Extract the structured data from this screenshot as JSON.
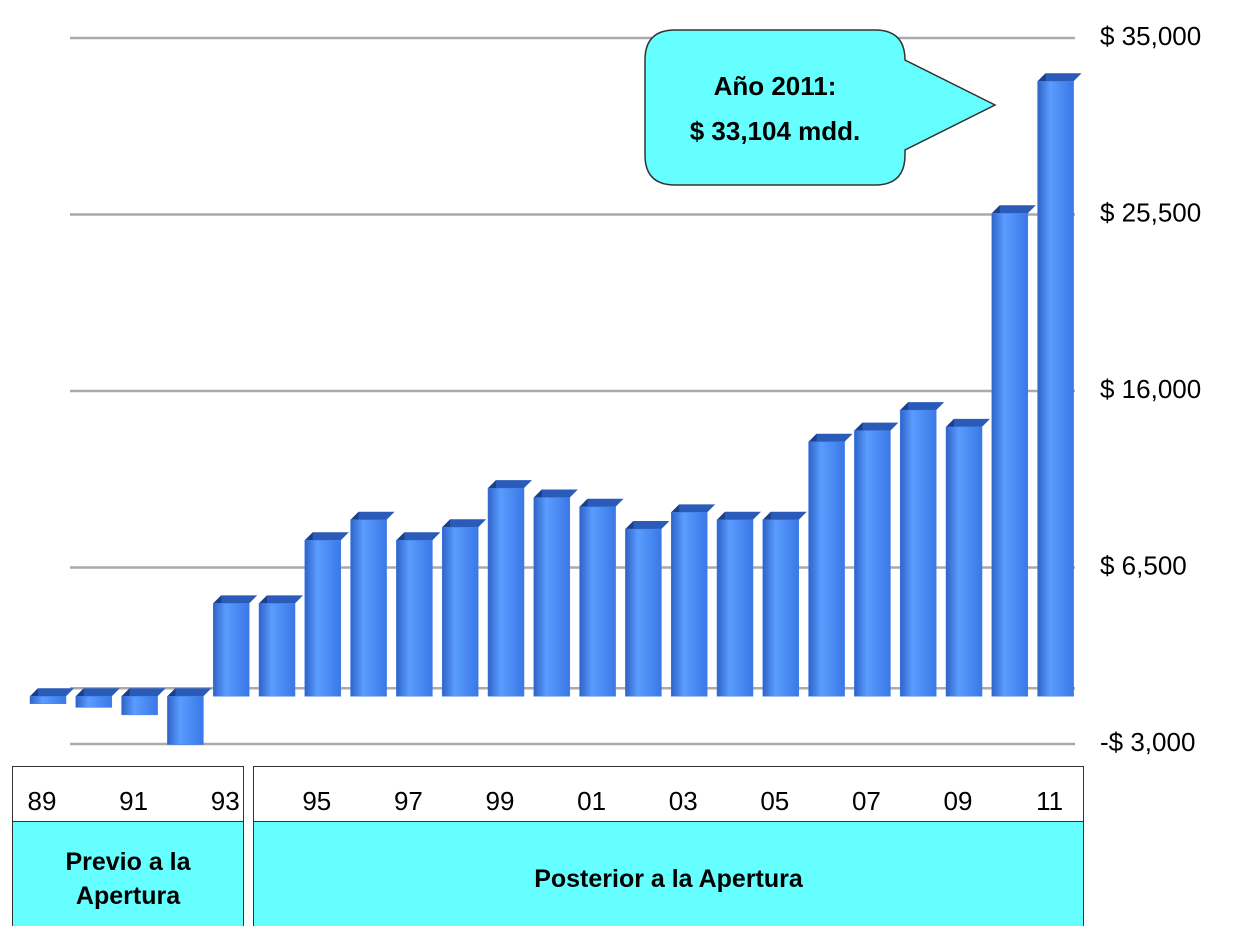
{
  "chart_data": {
    "type": "bar",
    "categories": [
      "89",
      null,
      "91",
      null,
      "93",
      null,
      "95",
      null,
      "97",
      null,
      "99",
      null,
      "01",
      null,
      "03",
      null,
      "05",
      null,
      "07",
      null,
      "09",
      null,
      "11"
    ],
    "values": [
      -400,
      -600,
      -1000,
      -2600,
      5000,
      5000,
      8400,
      9500,
      8400,
      9100,
      11200,
      10700,
      10200,
      9000,
      9900,
      9500,
      9500,
      13700,
      14300,
      15400,
      14500,
      26000,
      33104
    ],
    "color": "#3f7fe8",
    "ylim": [
      -3000,
      35000
    ],
    "yticks": [
      {
        "value": -3000,
        "label": "-$ 3,000"
      },
      {
        "value": 6500,
        "label": "$ 6,500"
      },
      {
        "value": 16000,
        "label": "$ 16,000"
      },
      {
        "value": 25500,
        "label": "$ 25,500"
      },
      {
        "value": 35000,
        "label": "$ 35,000"
      }
    ],
    "grid": true,
    "annotation": [
      "Año 2011:",
      "$ 33,104 mdd."
    ],
    "groups": [
      "Previo a la Apertura",
      "Posterior a la Apertura"
    ]
  }
}
